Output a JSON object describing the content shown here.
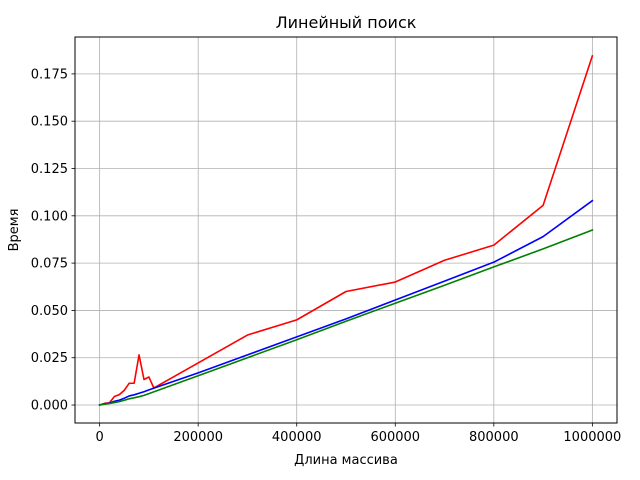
{
  "chart_data": {
    "type": "line",
    "title": "Линейный поиск",
    "xlabel": "Длина массива",
    "ylabel": "Время",
    "xlim": [
      -50000,
      1050000
    ],
    "ylim": [
      -0.0095,
      0.1945
    ],
    "grid": true,
    "x_ticks": [
      0,
      200000,
      400000,
      600000,
      800000,
      1000000
    ],
    "x_tick_labels": [
      "0",
      "200000",
      "400000",
      "600000",
      "800000",
      "1000000"
    ],
    "y_ticks": [
      0.0,
      0.025,
      0.05,
      0.075,
      0.1,
      0.125,
      0.15,
      0.175
    ],
    "y_tick_labels": [
      "0.000",
      "0.025",
      "0.050",
      "0.075",
      "0.100",
      "0.125",
      "0.150",
      "0.175"
    ],
    "series": [
      {
        "color": "#ff0000",
        "x": [
          0,
          10000,
          20000,
          30000,
          40000,
          50000,
          60000,
          70000,
          80000,
          90000,
          100000,
          110000,
          300000,
          400000,
          500000,
          600000,
          700000,
          800000,
          900000,
          1000000
        ],
        "y": [
          0.0,
          0.0009,
          0.0012,
          0.0045,
          0.0055,
          0.0078,
          0.0115,
          0.0115,
          0.0265,
          0.0135,
          0.0148,
          0.009,
          0.037,
          0.045,
          0.06,
          0.065,
          0.0765,
          0.0845,
          0.1055,
          0.1845
        ]
      },
      {
        "color": "#0000ff",
        "x": [
          0,
          10000,
          20000,
          30000,
          40000,
          50000,
          60000,
          70000,
          80000,
          90000,
          100000,
          200000,
          300000,
          400000,
          500000,
          600000,
          700000,
          800000,
          900000,
          1000000
        ],
        "y": [
          0.0,
          0.0006,
          0.001,
          0.002,
          0.0026,
          0.0036,
          0.0048,
          0.0054,
          0.0062,
          0.007,
          0.008,
          0.017,
          0.0265,
          0.036,
          0.0455,
          0.0555,
          0.0655,
          0.0755,
          0.089,
          0.108
        ]
      },
      {
        "color": "#008000",
        "x": [
          0,
          10000,
          20000,
          30000,
          40000,
          50000,
          60000,
          70000,
          80000,
          90000,
          100000,
          200000,
          300000,
          400000,
          500000,
          600000,
          700000,
          800000,
          900000,
          1000000
        ],
        "y": [
          0.0,
          0.0004,
          0.0008,
          0.0013,
          0.0018,
          0.0025,
          0.0033,
          0.0038,
          0.0044,
          0.0051,
          0.006,
          0.0155,
          0.025,
          0.0345,
          0.0443,
          0.0538,
          0.0633,
          0.073,
          0.0825,
          0.0925
        ]
      }
    ]
  }
}
